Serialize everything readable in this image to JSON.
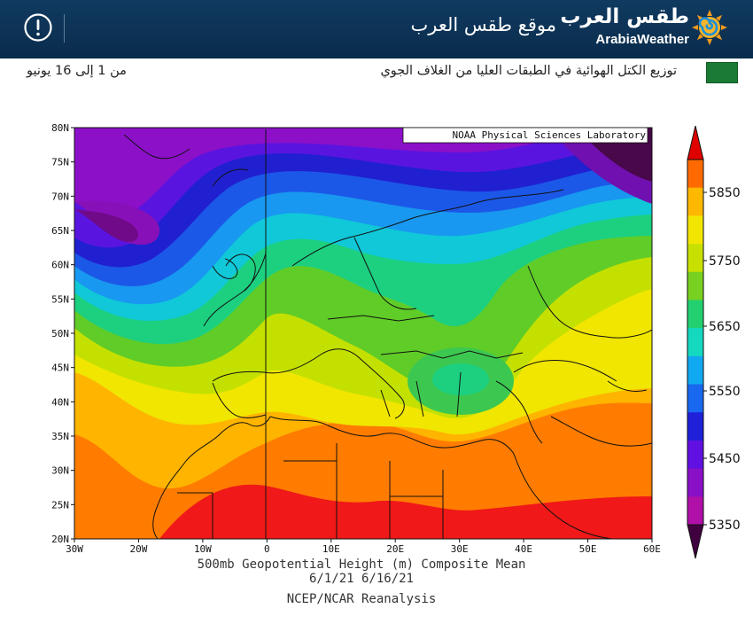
{
  "header": {
    "site_title": "موقع طقس العرب",
    "logo_arabic": "طقس العرب",
    "logo_english": "ArabiaWeather",
    "alert_icon": "exclamation-circle-icon",
    "logo_icon": "sun-spiral-icon"
  },
  "subheader": {
    "title": "توزيع الكتل الهوائية في الطبقات العليا من الغلاف الجوي",
    "date_range": "من 1 إلى 16 يونيو",
    "flag_icon": "saudi-flag-icon"
  },
  "map": {
    "credit": "NOAA Physical Sciences Laboratory",
    "lat_labels": [
      "80N",
      "75N",
      "70N",
      "65N",
      "60N",
      "55N",
      "50N",
      "45N",
      "40N",
      "35N",
      "30N",
      "25N",
      "20N"
    ],
    "lon_labels": [
      "30W",
      "20W",
      "10W",
      "0",
      "10E",
      "20E",
      "30E",
      "40E",
      "50E",
      "60E"
    ],
    "caption_line1": "500mb Geopotential Height (m) Composite Mean",
    "caption_line2": "6/1/21  6/16/21",
    "caption_line3": "NCEP/NCAR Reanalysis",
    "extent": {
      "lon_min": -30,
      "lon_max": 60,
      "lat_min": 20,
      "lat_max": 80
    }
  },
  "colorbar": {
    "labels": [
      "5850",
      "5750",
      "5650",
      "5550",
      "5450",
      "5350"
    ],
    "colors_top_to_bottom": [
      "#ff6a00",
      "#ffb800",
      "#f2e600",
      "#c8e000",
      "#78d020",
      "#22d070",
      "#14d8c0",
      "#10a8f0",
      "#1868f0",
      "#2020d8",
      "#6010e0",
      "#8a10c8",
      "#b010a8"
    ],
    "arrow_top_color": "#e00000",
    "arrow_bottom_color": "#400040"
  }
}
